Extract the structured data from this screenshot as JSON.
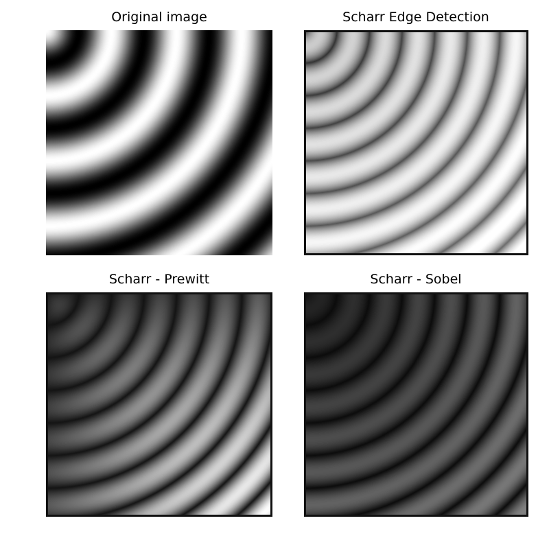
{
  "figure": {
    "panels": [
      {
        "id": "original",
        "title": "Original image"
      },
      {
        "id": "scharr",
        "title": "Scharr Edge Detection"
      },
      {
        "id": "scharr_minus_prewitt",
        "title": "Scharr - Prewitt"
      },
      {
        "id": "scharr_minus_sobel",
        "title": "Scharr - Sobel"
      }
    ],
    "colormap": "gray",
    "background": "#ffffff",
    "frame_color": "#111111"
  }
}
